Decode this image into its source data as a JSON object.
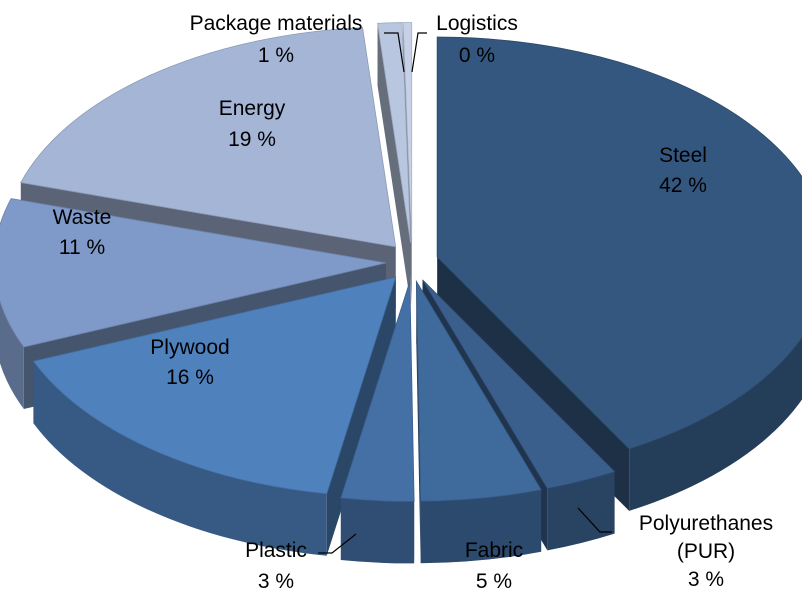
{
  "chart_data": {
    "type": "pie",
    "style": "3d-exploded",
    "legend": "none",
    "slices": [
      {
        "name": "Steel",
        "name_line2": "",
        "value": 42,
        "value_label": "42 %",
        "label_position": "inside",
        "color": "#34577f"
      },
      {
        "name": "Polyurethanes",
        "name_line2": "(PUR)",
        "value": 3,
        "value_label": "3 %",
        "label_position": "outside",
        "color": "#3a5f8d"
      },
      {
        "name": "Fabric",
        "name_line2": "",
        "value": 5,
        "value_label": "5 %",
        "label_position": "outside",
        "color": "#3f6a9c"
      },
      {
        "name": "Plastic",
        "name_line2": "",
        "value": 3,
        "value_label": "3 %",
        "label_position": "outside",
        "color": "#4470a6"
      },
      {
        "name": "Plywood",
        "name_line2": "",
        "value": 16,
        "value_label": "16 %",
        "label_position": "inside",
        "color": "#4f81bd"
      },
      {
        "name": "Waste",
        "name_line2": "",
        "value": 11,
        "value_label": "11 %",
        "label_position": "inside",
        "color": "#7f9ac8"
      },
      {
        "name": "Energy",
        "name_line2": "",
        "value": 19,
        "value_label": "19 %",
        "label_position": "inside",
        "color": "#a5b5d6"
      },
      {
        "name": "Package materials",
        "name_line2": "",
        "value": 1,
        "value_label": "1 %",
        "label_position": "outside",
        "color": "#b9c6e0"
      },
      {
        "name": "Logistics",
        "name_line2": "",
        "value": 0,
        "value_label": "0 %",
        "label_position": "outside",
        "color": "#c6d1e8"
      }
    ]
  }
}
